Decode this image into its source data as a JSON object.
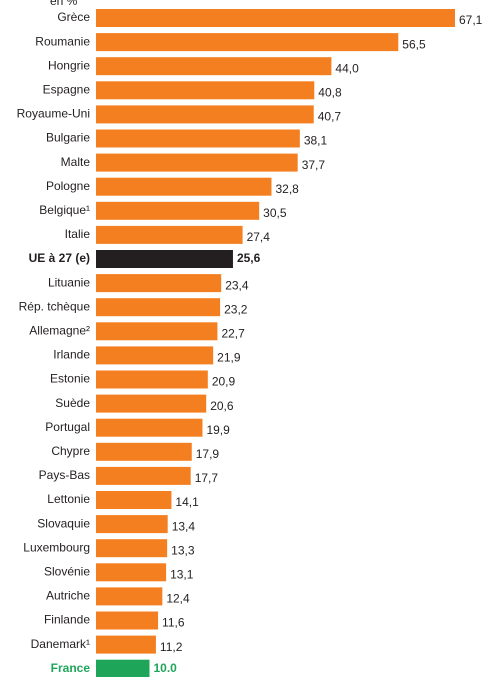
{
  "chart_data": {
    "type": "barh",
    "unit": "en %",
    "categories": [
      "Grèce",
      "Roumanie",
      "Hongrie",
      "Espagne",
      "Royaume-Uni",
      "Bulgarie",
      "Malte",
      "Pologne",
      "Belgique¹",
      "Italie",
      "UE à 27 (e)",
      "Lituanie",
      "Rép. tchèque",
      "Allemagne²",
      "Irlande",
      "Estonie",
      "Suède",
      "Portugal",
      "Chypre",
      "Pays-Bas",
      "Lettonie",
      "Slovaquie",
      "Luxembourg",
      "Slovénie",
      "Autriche",
      "Finlande",
      "Danemark¹",
      "France"
    ],
    "values": [
      67.1,
      56.5,
      44.0,
      40.8,
      40.7,
      38.1,
      37.7,
      32.8,
      30.5,
      27.4,
      25.6,
      23.4,
      23.2,
      22.7,
      21.9,
      20.9,
      20.6,
      19.9,
      17.9,
      17.7,
      14.1,
      13.4,
      13.3,
      13.1,
      12.4,
      11.6,
      11.2,
      10.0
    ],
    "value_labels": [
      "67,1",
      "56,5",
      "44,0",
      "40,8",
      "40,7",
      "38,1",
      "37,7",
      "32,8",
      "30,5",
      "27,4",
      "25,6",
      "23,4",
      "23,2",
      "22,7",
      "21,9",
      "20,9",
      "20,6",
      "19,9",
      "17,9",
      "17,7",
      "14,1",
      "13,4",
      "13,3",
      "13,1",
      "12,4",
      "11,6",
      "11,2",
      "10.0"
    ],
    "colors": [
      "#f47f20",
      "#f47f20",
      "#f47f20",
      "#f47f20",
      "#f47f20",
      "#f47f20",
      "#f47f20",
      "#f47f20",
      "#f47f20",
      "#f47f20",
      "#231f20",
      "#f47f20",
      "#f47f20",
      "#f47f20",
      "#f47f20",
      "#f47f20",
      "#f47f20",
      "#f47f20",
      "#f47f20",
      "#f47f20",
      "#f47f20",
      "#f47f20",
      "#f47f20",
      "#f47f20",
      "#f47f20",
      "#f47f20",
      "#f47f20",
      "#1fa55a"
    ]
  }
}
